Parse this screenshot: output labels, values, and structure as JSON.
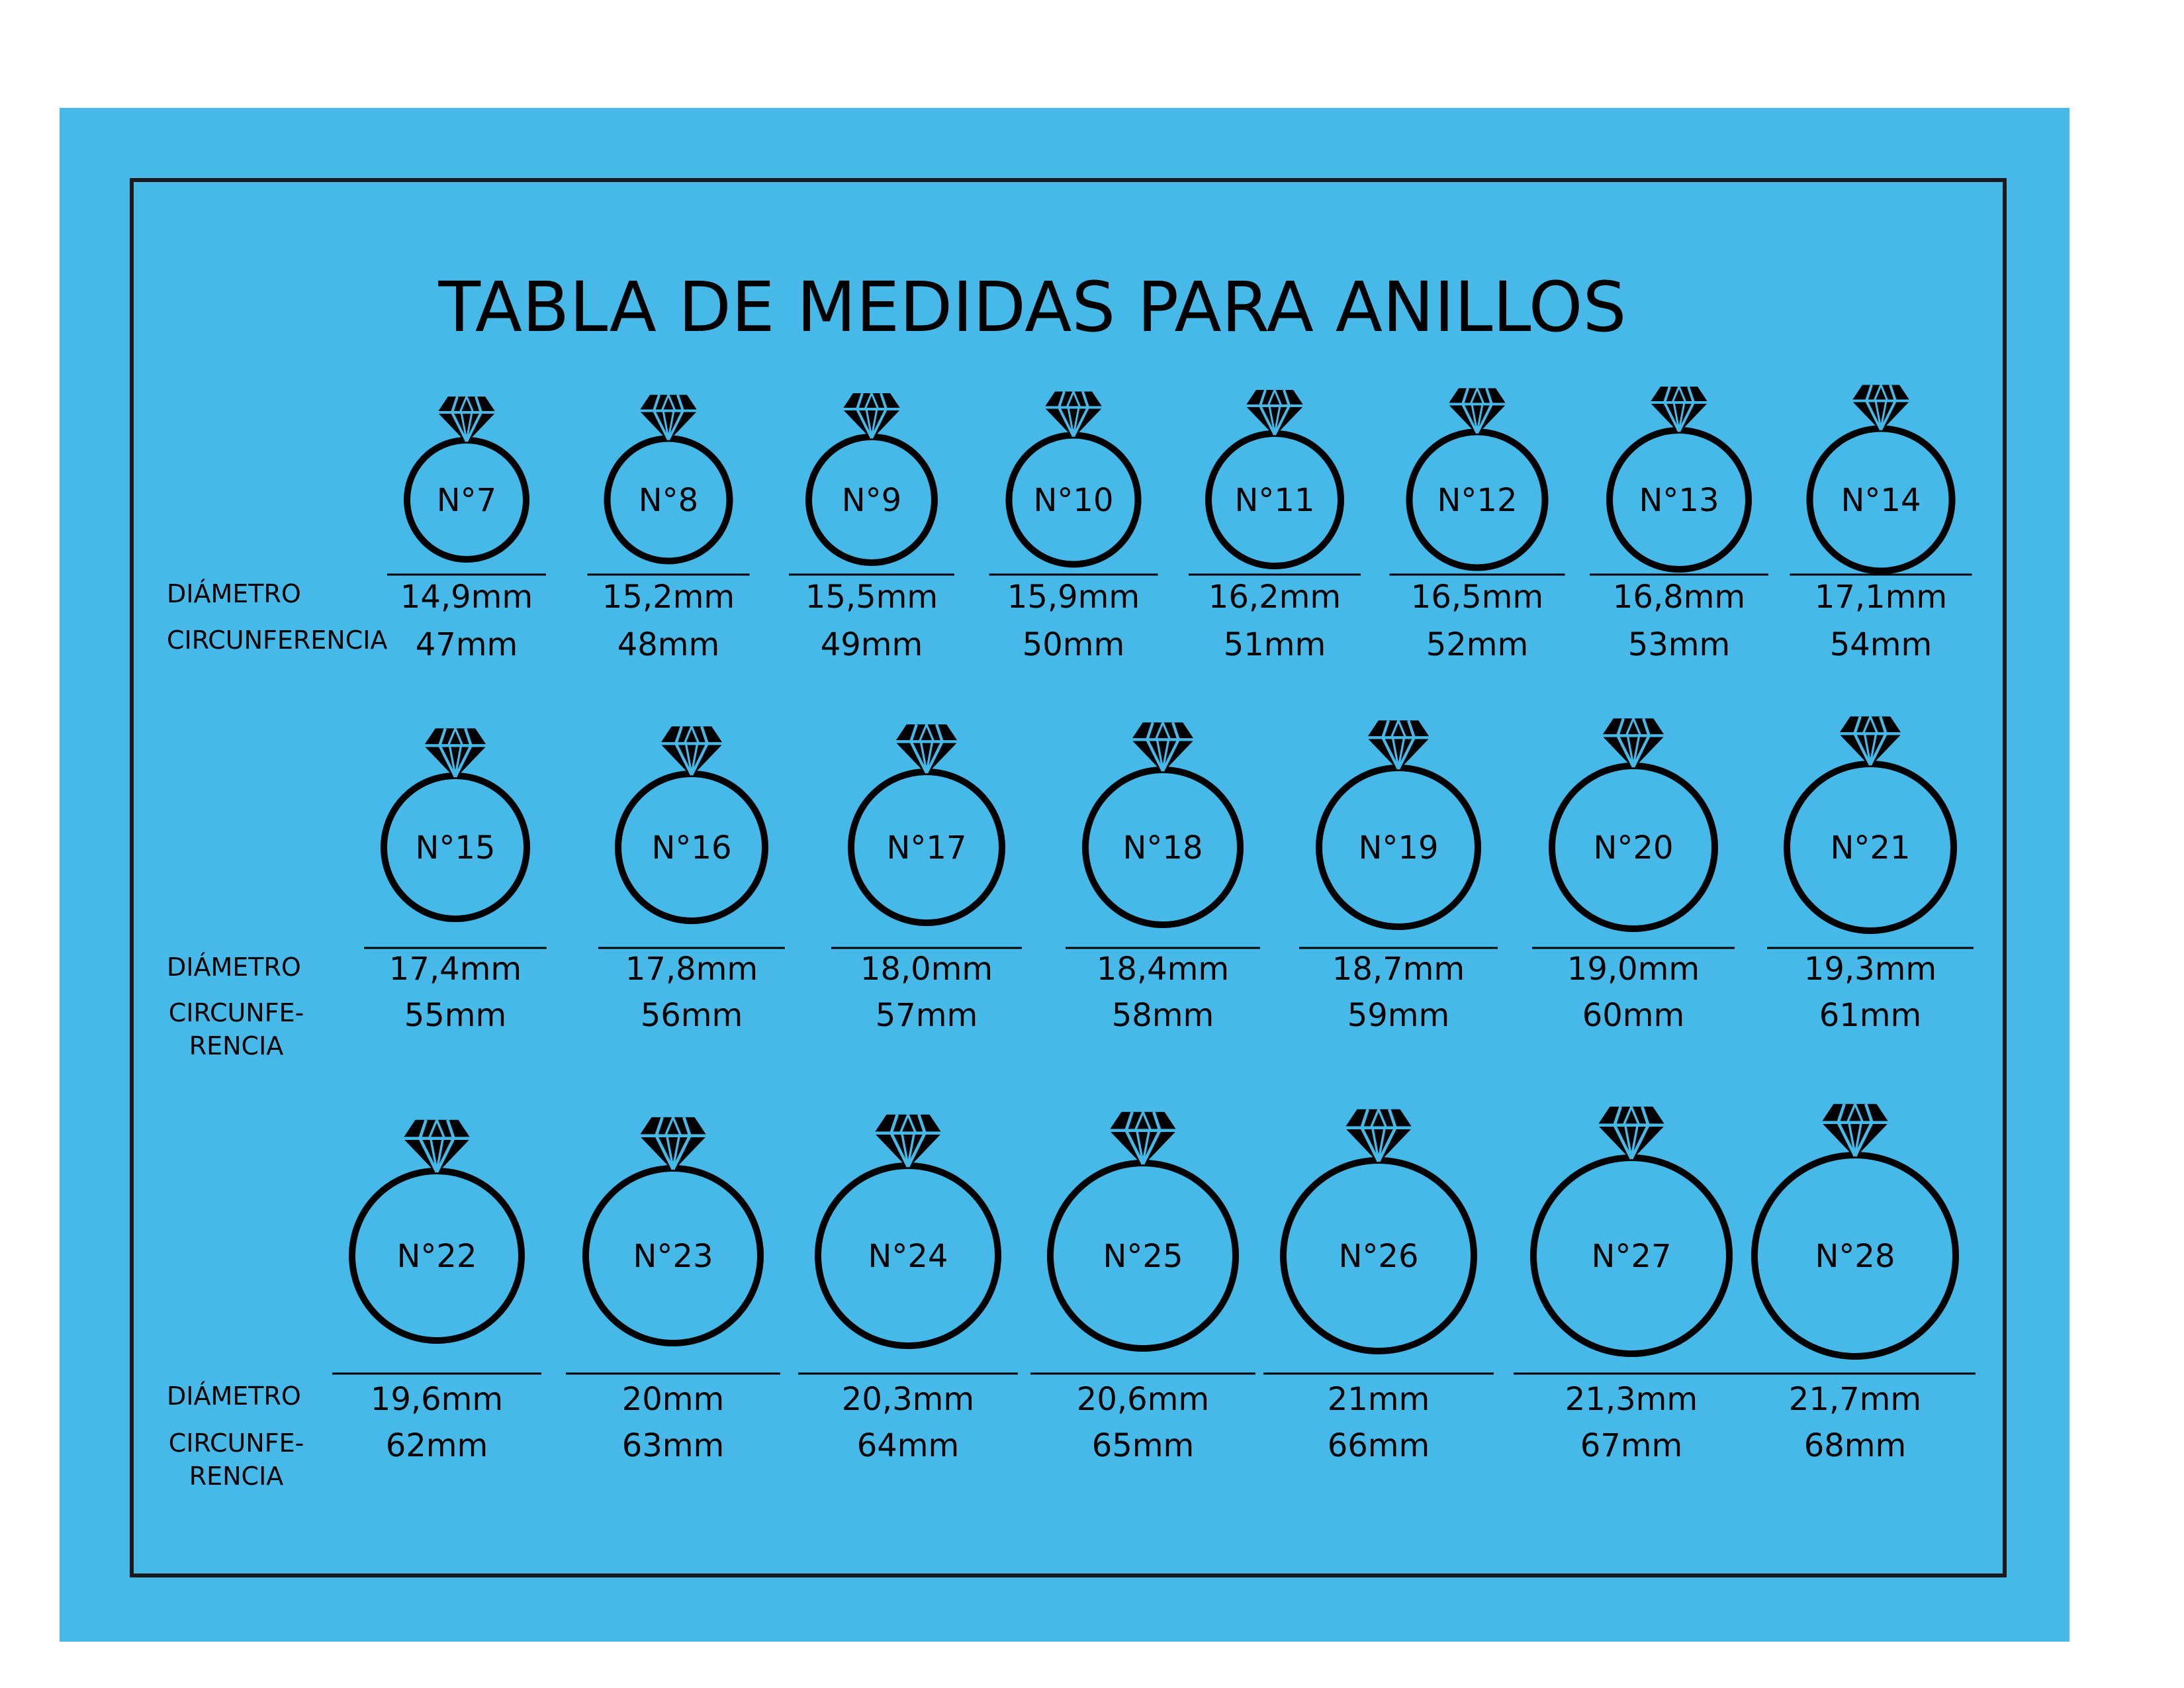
{
  "title": "TABLA DE MEDIDAS PARA ANILLOS",
  "colors": {
    "background": "#47B9E8",
    "ink": "#000000",
    "page": "#FFFFFF"
  },
  "icon": "diamond-ring-icon",
  "rows": [
    {
      "diameter_label": "DIÁMETRO",
      "circumference_label": [
        "CIRCUNFERENCIA"
      ],
      "rings": [
        {
          "size": "N°7",
          "diameter": "14,9mm",
          "circumference": "47mm"
        },
        {
          "size": "N°8",
          "diameter": "15,2mm",
          "circumference": "48mm"
        },
        {
          "size": "N°9",
          "diameter": "15,5mm",
          "circumference": "49mm"
        },
        {
          "size": "N°10",
          "diameter": "15,9mm",
          "circumference": "50mm"
        },
        {
          "size": "N°11",
          "diameter": "16,2mm",
          "circumference": "51mm"
        },
        {
          "size": "N°12",
          "diameter": "16,5mm",
          "circumference": "52mm"
        },
        {
          "size": "N°13",
          "diameter": "16,8mm",
          "circumference": "53mm"
        },
        {
          "size": "N°14",
          "diameter": "17,1mm",
          "circumference": "54mm"
        }
      ]
    },
    {
      "diameter_label": "DIÁMETRO",
      "circumference_label": [
        "CIRCUNFE-",
        "RENCIA"
      ],
      "rings": [
        {
          "size": "N°15",
          "diameter": "17,4mm",
          "circumference": "55mm"
        },
        {
          "size": "N°16",
          "diameter": "17,8mm",
          "circumference": "56mm"
        },
        {
          "size": "N°17",
          "diameter": "18,0mm",
          "circumference": "57mm"
        },
        {
          "size": "N°18",
          "diameter": "18,4mm",
          "circumference": "58mm"
        },
        {
          "size": "N°19",
          "diameter": "18,7mm",
          "circumference": "59mm"
        },
        {
          "size": "N°20",
          "diameter": "19,0mm",
          "circumference": "60mm"
        },
        {
          "size": "N°21",
          "diameter": "19,3mm",
          "circumference": "61mm"
        }
      ]
    },
    {
      "diameter_label": "DIÁMETRO",
      "circumference_label": [
        "CIRCUNFE-",
        "RENCIA"
      ],
      "rings": [
        {
          "size": "N°22",
          "diameter": "19,6mm",
          "circumference": "62mm"
        },
        {
          "size": "N°23",
          "diameter": "20mm",
          "circumference": "63mm"
        },
        {
          "size": "N°24",
          "diameter": "20,3mm",
          "circumference": "64mm"
        },
        {
          "size": "N°25",
          "diameter": "20,6mm",
          "circumference": "65mm"
        },
        {
          "size": "N°26",
          "diameter": "21mm",
          "circumference": "66mm"
        },
        {
          "size": "N°27",
          "diameter": "21,3mm",
          "circumference": "67mm"
        },
        {
          "size": "N°28",
          "diameter": "21,7mm",
          "circumference": "68mm"
        }
      ]
    }
  ]
}
